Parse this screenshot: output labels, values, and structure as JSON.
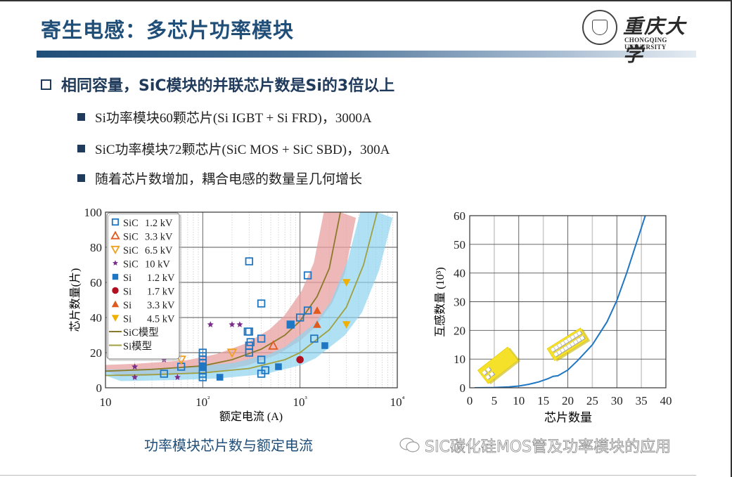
{
  "slide": {
    "title": "寄生电感：多芯片功率模块",
    "logo": {
      "cn": "重庆大学",
      "en": "CHONGQING UNIVERSITY"
    },
    "heading": "相同容量，SiC模块的并联芯片数是Si的3倍以上",
    "bullets": [
      "Si功率模块60颗芯片(Si IGBT + Si FRD)，3000A",
      "SiC功率模块72颗芯片(SiC MOS + SiC SBD)，300A",
      "随着芯片数增加，耦合电感的数量呈几何增长"
    ],
    "caption_left": "功率模块芯片数与额定电流",
    "watermark": "SIC碳化硅MOS管及功率模块的应用"
  },
  "chart_data": [
    {
      "type": "scatter",
      "title": "功率模块芯片数与额定电流",
      "xlabel": "额定电流 (A)",
      "ylabel": "芯片数量(片)",
      "xscale": "log",
      "xlim": [
        10,
        10000
      ],
      "ylim": [
        0,
        100
      ],
      "xticks": [
        "10",
        "10²",
        "10³",
        "10⁴"
      ],
      "yticks": [
        0,
        20,
        40,
        60,
        80,
        100
      ],
      "grid": true,
      "legend_position": "upper left",
      "legend": [
        "SiC 1.2 kV",
        "SiC 3.3 kV",
        "SiC 6.5 kV",
        "SiC 10 kV",
        "Si 1.2 kV",
        "Si 1.7 kV",
        "Si 3.3 kV",
        "Si 4.5 kV",
        "SiC模型",
        "Si模型"
      ],
      "series": [
        {
          "name": "SiC 1.2 kV",
          "marker": "square-open",
          "color": "#1f77c4",
          "points": [
            [
              40,
              8
            ],
            [
              60,
              12
            ],
            [
              100,
              6
            ],
            [
              100,
              8
            ],
            [
              100,
              10
            ],
            [
              100,
              14
            ],
            [
              100,
              16
            ],
            [
              100,
              18
            ],
            [
              100,
              20
            ],
            [
              290,
              32
            ],
            [
              300,
              32
            ],
            [
              300,
              72
            ],
            [
              300,
              20
            ],
            [
              300,
              24
            ],
            [
              310,
              26
            ],
            [
              400,
              8
            ],
            [
              400,
              16
            ],
            [
              400,
              28
            ],
            [
              400,
              48
            ],
            [
              440,
              10
            ],
            [
              800,
              36
            ],
            [
              1000,
              40
            ],
            [
              1200,
              44
            ],
            [
              1200,
              64
            ],
            [
              1400,
              28
            ]
          ]
        },
        {
          "name": "SiC 3.3 kV",
          "marker": "triangle-up-open",
          "color": "#e05a1e",
          "points": [
            [
              530,
              24
            ]
          ]
        },
        {
          "name": "SiC 6.5 kV",
          "marker": "triangle-down-open",
          "color": "#f0a020",
          "points": [
            [
              60,
              16
            ],
            [
              200,
              20
            ]
          ]
        },
        {
          "name": "SiC 10 kV",
          "marker": "star",
          "color": "#7b2d8e",
          "points": [
            [
              20,
              6
            ],
            [
              20,
              12
            ],
            [
              40,
              16
            ],
            [
              55,
              6
            ],
            [
              120,
              36
            ],
            [
              200,
              36
            ],
            [
              240,
              36
            ]
          ]
        },
        {
          "name": "Si 1.2 kV",
          "marker": "square-filled",
          "color": "#1f77c4",
          "points": [
            [
              100,
              12
            ],
            [
              150,
              6
            ],
            [
              600,
              12
            ],
            [
              800,
              36
            ],
            [
              1800,
              24
            ]
          ]
        },
        {
          "name": "Si 1.7 kV",
          "marker": "circle-filled",
          "color": "#b01020",
          "points": [
            [
              1000,
              16
            ]
          ]
        },
        {
          "name": "Si 3.3 kV",
          "marker": "triangle-up-filled",
          "color": "#e05a1e",
          "points": [
            [
              1500,
              36
            ],
            [
              1500,
              44
            ]
          ]
        },
        {
          "name": "Si 4.5 kV",
          "marker": "triangle-down-filled",
          "color": "#f0b000",
          "points": [
            [
              3000,
              36
            ],
            [
              3000,
              60
            ]
          ]
        },
        {
          "name": "SiC模型",
          "type": "line",
          "color": "#8a7a2a",
          "band_color": "#e8a0a0",
          "points": [
            [
              10,
              9.5
            ],
            [
              30,
              10.5
            ],
            [
              100,
              12.5
            ],
            [
              200,
              16
            ],
            [
              400,
              22
            ],
            [
              700,
              30
            ],
            [
              1000,
              38
            ],
            [
              1500,
              52
            ],
            [
              2000,
              68
            ],
            [
              2600,
              100
            ]
          ]
        },
        {
          "name": "Si模型",
          "type": "line",
          "color": "#a0a040",
          "band_color": "#8fd3f0",
          "points": [
            [
              10,
              7
            ],
            [
              30,
              7.5
            ],
            [
              100,
              8.5
            ],
            [
              300,
              11
            ],
            [
              700,
              16
            ],
            [
              1000,
              20
            ],
            [
              2000,
              33
            ],
            [
              3000,
              46
            ],
            [
              4500,
              70
            ],
            [
              6200,
              100
            ]
          ]
        }
      ]
    },
    {
      "type": "line",
      "title": "",
      "xlabel": "芯片数量",
      "ylabel": "互感数量 (10³)",
      "xlim": [
        0,
        40
      ],
      "ylim": [
        0,
        60
      ],
      "xticks": [
        0,
        5,
        10,
        15,
        20,
        25,
        30,
        35,
        40
      ],
      "yticks": [
        0,
        10,
        20,
        30,
        40,
        50,
        60
      ],
      "grid": true,
      "series": [
        {
          "name": "互感数量",
          "color": "#1f77c4",
          "x": [
            1,
            5,
            8,
            10,
            12,
            14,
            16,
            17,
            18,
            20,
            22,
            25,
            28,
            30,
            32,
            34,
            35.8
          ],
          "y": [
            0,
            0.1,
            0.3,
            0.6,
            1.2,
            2.0,
            3.2,
            4.0,
            4.2,
            6.2,
            9.5,
            15,
            23,
            30.5,
            40,
            50.5,
            60
          ]
        }
      ],
      "annotations": [
        "small module illustration (~5 chips)",
        "large module illustration (~20 chips)"
      ]
    }
  ]
}
